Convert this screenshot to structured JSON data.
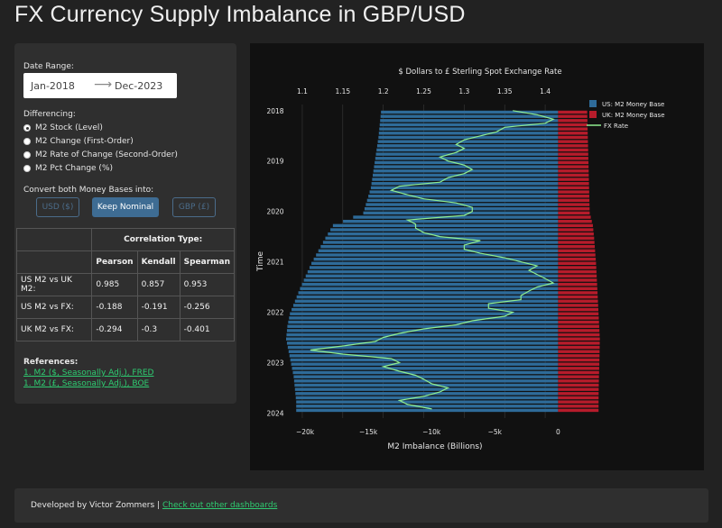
{
  "title": "FX Currency Supply Imbalance in GBP/USD",
  "sidebar": {
    "date_range_label": "Date Range:",
    "start_date": "Jan-2018",
    "end_date": "Dec-2023",
    "differencing_label": "Differencing:",
    "options": [
      "M2 Stock (Level)",
      "M2 Change (First-Order)",
      "M2 Rate of Change (Second-Order)",
      "M2 Pct Change (%)"
    ],
    "selected_option": 0,
    "convert_label": "Convert both Money Bases into:",
    "buttons": [
      "USD ($)",
      "Keep Nominal",
      "GBP (£)"
    ],
    "active_button": 1,
    "corr_table": {
      "header": "Correlation Type:",
      "columns": [
        "Pearson",
        "Kendall",
        "Spearman"
      ],
      "rows": [
        {
          "label": "US M2 vs UK M2:",
          "values": [
            "0.985",
            "0.857",
            "0.953"
          ]
        },
        {
          "label": "US M2 vs FX:",
          "values": [
            "-0.188",
            "-0.191",
            "-0.256"
          ]
        },
        {
          "label": "UK M2 vs FX:",
          "values": [
            "-0.294",
            "-0.3",
            "-0.401"
          ]
        }
      ]
    },
    "references_label": "References:",
    "references": [
      "1. M2 ($, Seasonally Adj.), FRED",
      "1. M2 (£, Seasonally Adj.), BOE"
    ]
  },
  "footer": {
    "developed_by": "Developed by Victor Zommers |",
    "link": "Check out other dashboards"
  },
  "colors": {
    "us": "#2e6b99",
    "uk": "#b71c2b",
    "fx": "#90ee90",
    "link": "#2ecc71"
  },
  "chart_data": {
    "type": "bar",
    "orientation": "horizontal",
    "top_axis_title": "$ Dollars to £ Sterling Spot Exchange Rate",
    "xlabel": "M2 Imbalance (Billions)",
    "ylabel": "Time",
    "x_ticks": [
      -20000,
      -15000,
      -10000,
      -5000,
      0
    ],
    "x_tick_labels": [
      "−20k",
      "−15k",
      "−10k",
      "−5k",
      "0"
    ],
    "xlim": [
      -21500,
      900
    ],
    "top_ticks": [
      1.1,
      1.15,
      1.2,
      1.25,
      1.3,
      1.35,
      1.4
    ],
    "top_tick_labels": [
      "1.1",
      "1.15",
      "1.2",
      "1.25",
      "1.3",
      "1.35",
      "1.4"
    ],
    "top_lim": [
      1.08,
      1.43
    ],
    "y_ticks": [
      "2018",
      "2019",
      "2020",
      "2021",
      "2022",
      "2023",
      "2024"
    ],
    "ylim": [
      2017.95,
      2024.1
    ],
    "legend": [
      "US: M2 Money Base",
      "UK: M2 Money Base",
      "FX Rate"
    ],
    "legend_position": "top-right",
    "series": [
      {
        "name": "US: M2 Money Base",
        "x": [
          2018.0,
          2018.5,
          2019.0,
          2019.5,
          2020.0,
          2020.25,
          2020.5,
          2021.0,
          2021.5,
          2022.0,
          2022.25,
          2022.5,
          2022.75,
          2023.0,
          2023.25,
          2023.5,
          2023.75,
          2023.92
        ],
        "values": [
          -14000,
          -14200,
          -14500,
          -14800,
          -15400,
          -17800,
          -18400,
          -19500,
          -20400,
          -21200,
          -21400,
          -21500,
          -21300,
          -21100,
          -20900,
          -20800,
          -20700,
          -20700
        ]
      },
      {
        "name": "UK: M2 Money Base",
        "x": [
          2018.0,
          2018.5,
          2019.0,
          2019.5,
          2020.0,
          2020.25,
          2020.5,
          2021.0,
          2021.5,
          2022.0,
          2022.25,
          2022.5,
          2022.75,
          2023.0,
          2023.25,
          2023.5,
          2023.75,
          2023.92
        ],
        "values": [
          2300,
          2350,
          2400,
          2450,
          2500,
          2750,
          2850,
          3000,
          3100,
          3200,
          3250,
          3300,
          3280,
          3260,
          3230,
          3210,
          3200,
          3200
        ]
      },
      {
        "name": "FX Rate",
        "x": [
          2018.0,
          2018.08,
          2018.17,
          2018.25,
          2018.33,
          2018.42,
          2018.5,
          2018.58,
          2018.67,
          2018.75,
          2018.83,
          2018.92,
          2019.0,
          2019.08,
          2019.17,
          2019.25,
          2019.33,
          2019.42,
          2019.5,
          2019.58,
          2019.67,
          2019.75,
          2019.83,
          2019.92,
          2020.0,
          2020.08,
          2020.17,
          2020.25,
          2020.33,
          2020.42,
          2020.5,
          2020.58,
          2020.67,
          2020.75,
          2020.83,
          2020.92,
          2021.0,
          2021.08,
          2021.17,
          2021.25,
          2021.33,
          2021.42,
          2021.5,
          2021.58,
          2021.67,
          2021.75,
          2021.83,
          2021.92,
          2022.0,
          2022.08,
          2022.17,
          2022.25,
          2022.33,
          2022.42,
          2022.5,
          2022.58,
          2022.67,
          2022.75,
          2022.83,
          2022.92,
          2023.0,
          2023.08,
          2023.17,
          2023.25,
          2023.33,
          2023.42,
          2023.5,
          2023.58,
          2023.67,
          2023.75,
          2023.83,
          2023.92
        ],
        "values": [
          1.36,
          1.39,
          1.41,
          1.4,
          1.35,
          1.34,
          1.32,
          1.3,
          1.29,
          1.3,
          1.29,
          1.27,
          1.28,
          1.3,
          1.31,
          1.3,
          1.28,
          1.27,
          1.22,
          1.21,
          1.23,
          1.25,
          1.29,
          1.31,
          1.31,
          1.3,
          1.23,
          1.24,
          1.24,
          1.25,
          1.27,
          1.32,
          1.3,
          1.3,
          1.32,
          1.35,
          1.37,
          1.39,
          1.38,
          1.39,
          1.4,
          1.41,
          1.39,
          1.38,
          1.37,
          1.37,
          1.33,
          1.33,
          1.36,
          1.35,
          1.31,
          1.29,
          1.25,
          1.22,
          1.2,
          1.19,
          1.15,
          1.11,
          1.15,
          1.21,
          1.22,
          1.2,
          1.22,
          1.24,
          1.25,
          1.26,
          1.28,
          1.27,
          1.25,
          1.22,
          1.23,
          1.26
        ]
      }
    ]
  }
}
